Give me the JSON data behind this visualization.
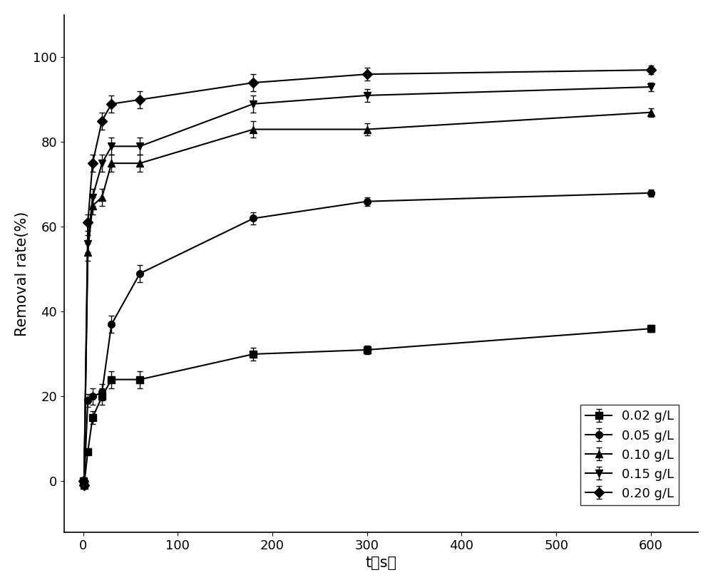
{
  "title": "",
  "xlabel": "t（s）",
  "ylabel": "Removal rate(%)",
  "xlim": [
    -20,
    650
  ],
  "ylim": [
    -12,
    110
  ],
  "xticks": [
    0,
    100,
    200,
    300,
    400,
    500,
    600
  ],
  "yticks": [
    0,
    20,
    40,
    60,
    80,
    100
  ],
  "series": [
    {
      "label": "0.02 g/L",
      "marker": "s",
      "x": [
        0,
        1,
        5,
        10,
        20,
        30,
        60,
        180,
        300,
        600
      ],
      "y": [
        0,
        -1,
        7,
        15,
        20,
        24,
        24,
        30,
        31,
        36
      ],
      "yerr": [
        0,
        0,
        0.5,
        1.5,
        2.0,
        2.0,
        2.0,
        1.5,
        1.0,
        0.8
      ]
    },
    {
      "label": "0.05 g/L",
      "marker": "o",
      "x": [
        0,
        1,
        5,
        10,
        20,
        30,
        60,
        180,
        300,
        600
      ],
      "y": [
        0,
        -1,
        19,
        20,
        21,
        37,
        49,
        62,
        66,
        68
      ],
      "yerr": [
        0,
        0,
        1.5,
        2.0,
        2.0,
        2.0,
        2.0,
        1.5,
        1.0,
        0.8
      ]
    },
    {
      "label": "0.10 g/L",
      "marker": "^",
      "x": [
        0,
        1,
        5,
        10,
        20,
        30,
        60,
        180,
        300,
        600
      ],
      "y": [
        0,
        -1,
        54,
        65,
        67,
        75,
        75,
        83,
        83,
        87
      ],
      "yerr": [
        0,
        0,
        2.0,
        2.0,
        2.0,
        2.0,
        2.0,
        2.0,
        1.5,
        1.0
      ]
    },
    {
      "label": "0.15 g/L",
      "marker": "v",
      "x": [
        0,
        1,
        5,
        10,
        20,
        30,
        60,
        180,
        300,
        600
      ],
      "y": [
        0,
        -1,
        56,
        67,
        75,
        79,
        79,
        89,
        91,
        93
      ],
      "yerr": [
        0,
        0,
        2.0,
        2.0,
        2.0,
        2.0,
        2.0,
        2.0,
        1.5,
        1.0
      ]
    },
    {
      "label": "0.20 g/L",
      "marker": "D",
      "x": [
        0,
        1,
        5,
        10,
        20,
        30,
        60,
        180,
        300,
        600
      ],
      "y": [
        0,
        -1,
        61,
        75,
        85,
        89,
        90,
        94,
        96,
        97
      ],
      "yerr": [
        0,
        0,
        2.0,
        2.0,
        2.0,
        2.0,
        2.0,
        2.0,
        1.5,
        1.0
      ]
    }
  ],
  "line_color": "#000000",
  "marker_size": 7,
  "line_width": 1.5,
  "legend_fontsize": 13,
  "axis_fontsize": 15,
  "tick_fontsize": 13
}
